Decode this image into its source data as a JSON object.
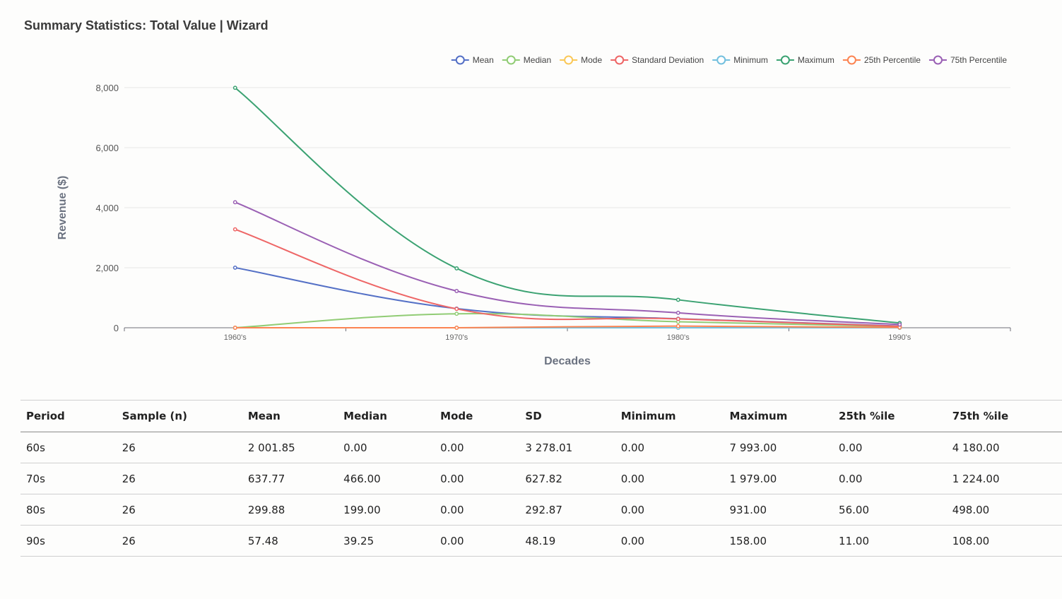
{
  "page": {
    "title": "Summary Statistics: Total Value | Wizard"
  },
  "chart_data": {
    "type": "line",
    "title": "Summary Statistics: Total Value | Wizard",
    "xlabel": "Decades",
    "ylabel": "Revenue ($)",
    "categories": [
      "1960's",
      "1970's",
      "1980's",
      "1990's"
    ],
    "ylim": [
      0,
      8000
    ],
    "yticks": [
      0,
      2000,
      4000,
      6000,
      8000
    ],
    "ytick_labels": [
      "0",
      "2,000",
      "4,000",
      "6,000",
      "8,000"
    ],
    "grid": true,
    "legend_position": "top-right",
    "series": [
      {
        "name": "Mean",
        "color": "#5470c6",
        "values": [
          2001.85,
          637.77,
          299.88,
          57.48
        ]
      },
      {
        "name": "Median",
        "color": "#91cc75",
        "values": [
          0,
          466,
          199,
          39.25
        ]
      },
      {
        "name": "Mode",
        "color": "#fac858",
        "values": [
          0,
          0,
          0,
          0
        ]
      },
      {
        "name": "Standard Deviation",
        "color": "#ee6666",
        "values": [
          3278.01,
          627.82,
          292.87,
          48.19
        ]
      },
      {
        "name": "Minimum",
        "color": "#73c0de",
        "values": [
          0,
          0,
          0,
          0
        ]
      },
      {
        "name": "Maximum",
        "color": "#3ba272",
        "values": [
          7993,
          1979,
          931,
          158
        ]
      },
      {
        "name": "25th Percentile",
        "color": "#fc8452",
        "values": [
          0,
          0,
          56,
          11
        ]
      },
      {
        "name": "75th Percentile",
        "color": "#9a60b4",
        "values": [
          4180,
          1224,
          498,
          108
        ]
      }
    ]
  },
  "table": {
    "headers": [
      "Period",
      "Sample (n)",
      "Mean",
      "Median",
      "Mode",
      "SD",
      "Minimum",
      "Maximum",
      "25th %ile",
      "75th %ile"
    ],
    "rows": [
      [
        "60s",
        "26",
        "2 001.85",
        "0.00",
        "0.00",
        "3 278.01",
        "0.00",
        "7 993.00",
        "0.00",
        "4 180.00"
      ],
      [
        "70s",
        "26",
        "637.77",
        "466.00",
        "0.00",
        "627.82",
        "0.00",
        "1 979.00",
        "0.00",
        "1 224.00"
      ],
      [
        "80s",
        "26",
        "299.88",
        "199.00",
        "0.00",
        "292.87",
        "0.00",
        "931.00",
        "56.00",
        "498.00"
      ],
      [
        "90s",
        "26",
        "57.48",
        "39.25",
        "0.00",
        "48.19",
        "0.00",
        "158.00",
        "11.00",
        "108.00"
      ]
    ]
  }
}
